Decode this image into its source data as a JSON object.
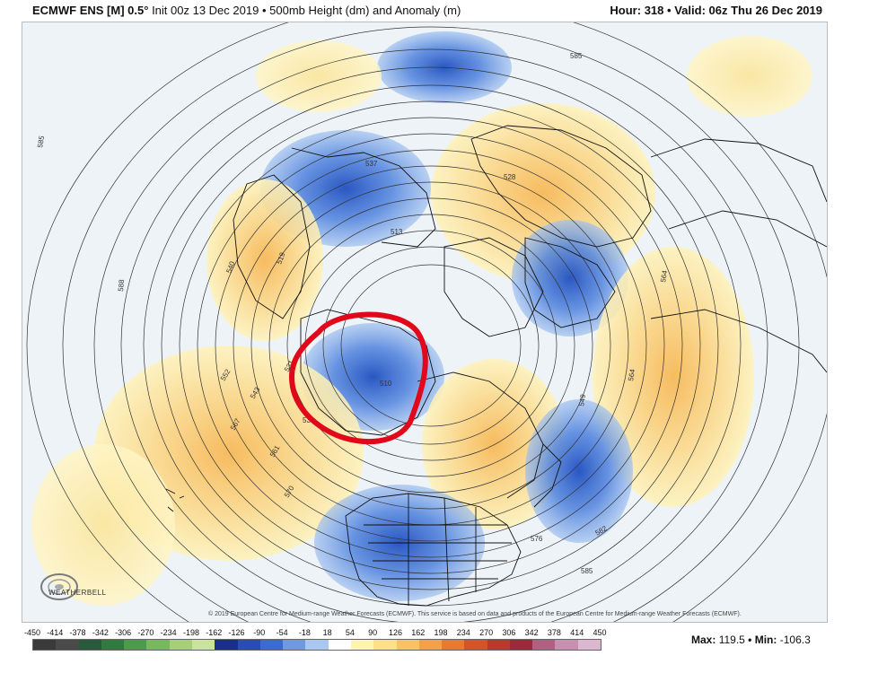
{
  "header": {
    "model": "ECMWF ENS [M] 0.5",
    "degree": "°",
    "init": "Init 00z 13 Dec 2019",
    "field": "500mb Height (dm) and Anomaly (m)",
    "hour_label": "Hour:",
    "hour_value": "318",
    "valid_label": "Valid:",
    "valid_value": "06z Thu 26 Dec 2019",
    "sep": "•"
  },
  "map": {
    "contour_labels": [
      "585",
      "588",
      "585",
      "537",
      "513",
      "540",
      "519",
      "528",
      "564",
      "552",
      "543",
      "567",
      "561",
      "570",
      "531",
      "531",
      "510",
      "549",
      "564",
      "582",
      "576",
      "585"
    ],
    "annotation": "red hand-drawn circle over Alaska / northwest Canada"
  },
  "copyright": "© 2019 European Centre for Medium-range Weather Forecasts (ECMWF). This service is based on data and products of the European Centre for Medium-range Weather Forecasts (ECMWF).",
  "logo": {
    "text": "WEATHERBELL"
  },
  "colorbar": {
    "labels": [
      "-450",
      "-414",
      "-378",
      "-342",
      "-306",
      "-270",
      "-234",
      "-198",
      "-162",
      "-126",
      "-90",
      "-54",
      "-18",
      "18",
      "54",
      "90",
      "126",
      "162",
      "198",
      "234",
      "270",
      "306",
      "342",
      "378",
      "414",
      "450"
    ],
    "colors": [
      "#3a3a3a",
      "#4a4a4a",
      "#2b5a3a",
      "#2f7a3e",
      "#4c9a4c",
      "#78b85e",
      "#a6cf7a",
      "#c9e39c",
      "#1a2f8a",
      "#2a4db3",
      "#3a6ccf",
      "#6f9ae0",
      "#a9c7f0",
      "#ffffff",
      "#fff4b0",
      "#fde08a",
      "#f9c266",
      "#f3a04a",
      "#e67a33",
      "#d2552a",
      "#b83a2a",
      "#9c2a3a",
      "#b06080",
      "#c890b0",
      "#dcb8d0"
    ]
  },
  "stats": {
    "max_label": "Max:",
    "max_value": "119.5",
    "min_label": "Min:",
    "min_value": "-106.3",
    "sep": "•"
  }
}
